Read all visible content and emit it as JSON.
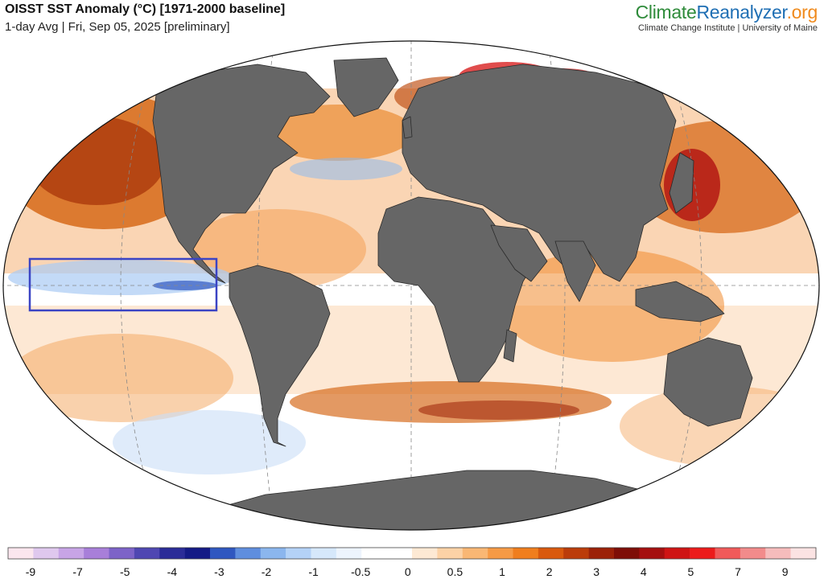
{
  "header": {
    "title": "OISST SST Anomaly (°C) [1971-2000 baseline]",
    "subtitle": "1-day Avg | Fri, Sep 05, 2025 [preliminary]"
  },
  "brand": {
    "logo_part1": "Climate",
    "logo_part2": "Reanalyzer",
    "logo_part3": ".org",
    "tagline": "Climate Change Institute | University of Maine",
    "colors": {
      "green": "#2e8b3a",
      "blue": "#1f6fb4",
      "orange": "#f08a1c"
    }
  },
  "map": {
    "projection": "robinson-like world",
    "ocean_background": "#ffffff",
    "land_color": "#666666",
    "highlight_box": {
      "label": "",
      "color": "#3b44c4"
    },
    "icons": [
      "continents",
      "graticule",
      "nino-region-box"
    ]
  },
  "legend": {
    "tick_labels": [
      "-9",
      "-7",
      "-5",
      "-4",
      "-3",
      "-2",
      "-1",
      "-0.5",
      "0",
      "0.5",
      "1",
      "2",
      "3",
      "4",
      "5",
      "7",
      "9"
    ],
    "colors": [
      "#fbe6ee",
      "#dfc8ee",
      "#c7a4e6",
      "#a87fd9",
      "#7d63c8",
      "#4f47b2",
      "#2b2c98",
      "#141a86",
      "#2f57c0",
      "#5f8ede",
      "#8bb6ee",
      "#b4d2f7",
      "#d6e8fb",
      "#edf4fd",
      "#ffffff",
      "#ffffff",
      "#fde9d4",
      "#fcd2a6",
      "#f9b774",
      "#f69a45",
      "#f07e1d",
      "#d9590d",
      "#bb3c0a",
      "#9c2108",
      "#7e0e07",
      "#a50f0f",
      "#cf1414",
      "#ec1b1b",
      "#f05a5a",
      "#f28b8b",
      "#f6bcbc",
      "#fbe3e3"
    ]
  }
}
